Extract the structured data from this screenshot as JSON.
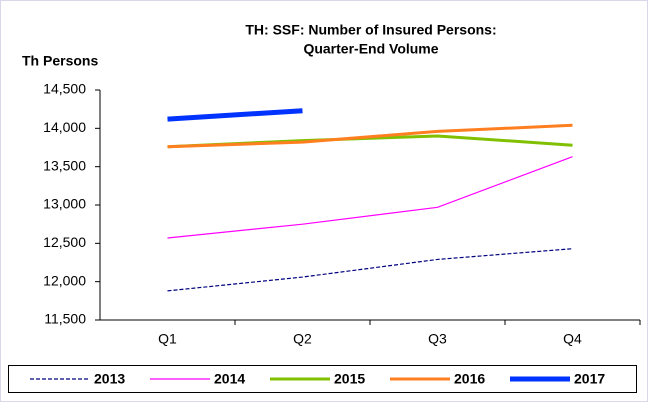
{
  "chart_data": {
    "type": "line",
    "title": [
      "TH: SSF: Number of Insured Persons:",
      "Quarter-End Volume"
    ],
    "y_label": "Th Persons",
    "categories": [
      "Q1",
      "Q2",
      "Q3",
      "Q4"
    ],
    "series": [
      {
        "name": "2013",
        "color": "#000080",
        "line_width": 1.2,
        "dashed": true,
        "values": [
          11880,
          12060,
          12290,
          12430
        ]
      },
      {
        "name": "2014",
        "color": "#ff00ff",
        "line_width": 1.2,
        "dashed": false,
        "values": [
          12570,
          12750,
          12970,
          13630
        ]
      },
      {
        "name": "2015",
        "color": "#80c000",
        "line_width": 3,
        "dashed": false,
        "values": [
          13760,
          13840,
          13900,
          13780
        ]
      },
      {
        "name": "2016",
        "color": "#ff7f20",
        "line_width": 3,
        "dashed": false,
        "values": [
          13760,
          13820,
          13960,
          14040
        ]
      },
      {
        "name": "2017",
        "color": "#0033ff",
        "line_width": 5,
        "dashed": false,
        "values": [
          14120,
          14230,
          null,
          null
        ]
      }
    ],
    "ylim": [
      11500,
      14500
    ],
    "yticks": [
      {
        "value": 11500,
        "label": "11,500"
      },
      {
        "value": 12000,
        "label": "12,000"
      },
      {
        "value": 12500,
        "label": "12,500"
      },
      {
        "value": 13000,
        "label": "13,000"
      },
      {
        "value": 13500,
        "label": "13,500"
      },
      {
        "value": 14000,
        "label": "14,000"
      },
      {
        "value": 14500,
        "label": "14,500"
      }
    ],
    "grid": false,
    "legend": "bottom"
  }
}
